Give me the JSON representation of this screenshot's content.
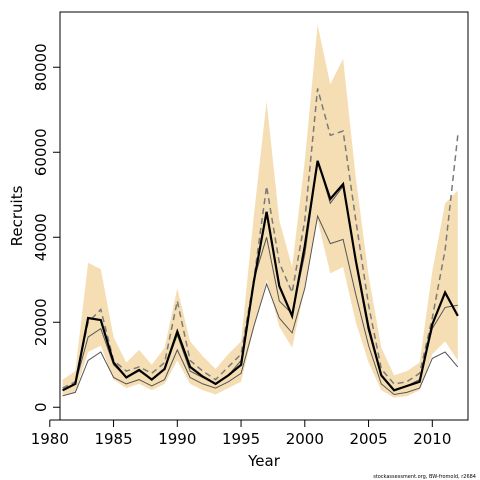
{
  "chart_data": {
    "type": "line",
    "xlabel": "Year",
    "ylabel": "Recruits",
    "xlim": [
      1980.8,
      2012.8
    ],
    "ylim": [
      -3000,
      93000
    ],
    "x_ticks": [
      1980,
      1985,
      1990,
      1995,
      2000,
      2005,
      2010
    ],
    "y_ticks": [
      0,
      20000,
      40000,
      60000,
      80000
    ],
    "credit": "stockassessment.org, BW-fromold, r2684",
    "colors": {
      "band": "#f5deb3",
      "main": "#000000",
      "alt": "#7a7a7a",
      "alt_ci": "#555555"
    },
    "x": [
      1981,
      1982,
      1983,
      1984,
      1985,
      1986,
      1987,
      1988,
      1989,
      1990,
      1991,
      1992,
      1993,
      1994,
      1995,
      1996,
      1997,
      1998,
      1999,
      2000,
      2001,
      2002,
      2003,
      2004,
      2005,
      2006,
      2007,
      2008,
      2009,
      2010,
      2011,
      2012
    ],
    "series": [
      {
        "role": "band",
        "upper": [
          6500,
          8500,
          34000,
          32500,
          16500,
          10500,
          13500,
          10000,
          14000,
          28000,
          15500,
          12000,
          9000,
          12500,
          15500,
          45000,
          72000,
          44000,
          33000,
          58000,
          90000,
          76000,
          82000,
          54000,
          31000,
          14000,
          7500,
          8500,
          10500,
          32000,
          48000,
          51000
        ],
        "lower": [
          2500,
          3500,
          13000,
          14500,
          6500,
          4500,
          5500,
          4000,
          5500,
          11000,
          5500,
          4000,
          3000,
          4500,
          6000,
          18500,
          30000,
          19000,
          14000,
          28000,
          44000,
          31500,
          33000,
          20000,
          10500,
          4000,
          2300,
          2600,
          4000,
          12500,
          15500,
          11000
        ]
      },
      {
        "role": "main",
        "values": [
          4000,
          5500,
          21000,
          20500,
          10500,
          7000,
          8800,
          6500,
          9000,
          17800,
          9500,
          7200,
          5500,
          7500,
          10000,
          29500,
          46000,
          28500,
          21500,
          38000,
          58000,
          49000,
          52500,
          34500,
          18500,
          7500,
          4000,
          5000,
          6000,
          19500,
          27000,
          21500
        ]
      },
      {
        "role": "alt",
        "values": [
          4500,
          6000,
          20000,
          23000,
          11000,
          8500,
          9500,
          8000,
          10500,
          25000,
          11000,
          8500,
          6500,
          9500,
          12500,
          30000,
          52000,
          34000,
          27000,
          44000,
          75000,
          64000,
          65000,
          44000,
          24000,
          9000,
          5500,
          6000,
          8000,
          21000,
          37000,
          64000
        ]
      },
      {
        "role": "alt_ci_upper",
        "values": [
          4000,
          5500,
          16500,
          18500,
          10000,
          7000,
          8500,
          6500,
          9000,
          17000,
          8500,
          7000,
          5500,
          7500,
          11000,
          30000,
          40000,
          25000,
          22000,
          36000,
          58000,
          48000,
          52000,
          35000,
          19500,
          7500,
          4000,
          5000,
          6500,
          18500,
          23500,
          24000
        ]
      },
      {
        "role": "alt_ci_lower",
        "values": [
          2700,
          3500,
          11000,
          13000,
          7000,
          5500,
          6500,
          5000,
          6500,
          13500,
          7000,
          5500,
          4500,
          6000,
          8000,
          19000,
          29000,
          21000,
          17500,
          28000,
          45000,
          38500,
          39500,
          26500,
          14500,
          5500,
          3000,
          3500,
          4500,
          11500,
          13000,
          9500
        ]
      }
    ]
  }
}
